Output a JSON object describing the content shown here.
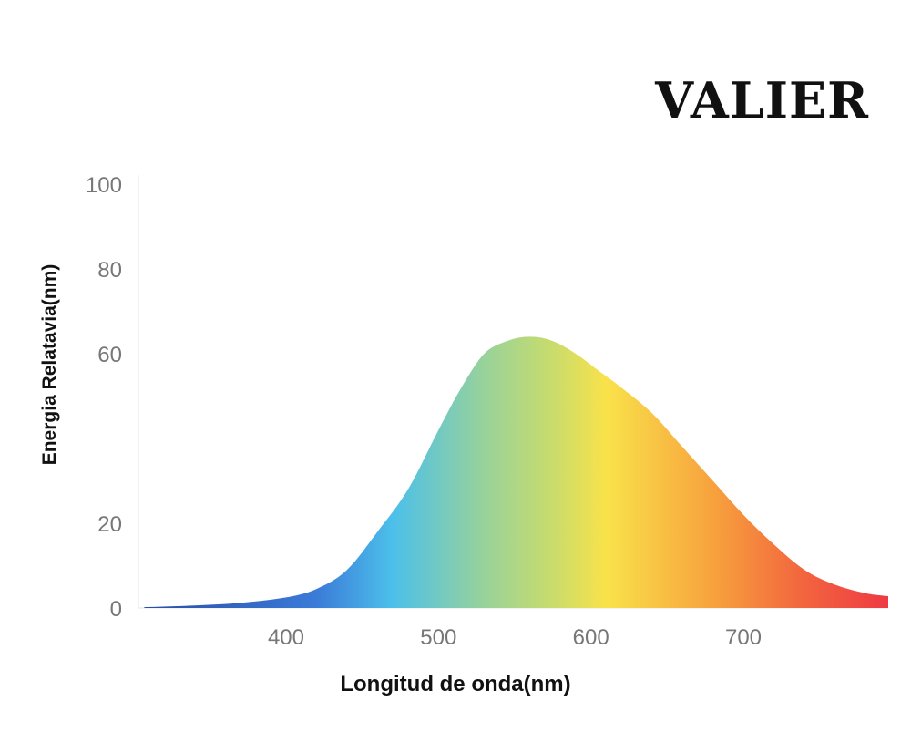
{
  "brand": {
    "name": "VALIER"
  },
  "chart_data": {
    "type": "area",
    "title": "",
    "xlabel": "Longitud de onda(nm)",
    "ylabel": "Energia Relatavia(nm)",
    "xlim": [
      305,
      795
    ],
    "ylim": [
      0,
      100
    ],
    "x_ticks": [
      400,
      500,
      600,
      700
    ],
    "y_ticks": [
      {
        "value": 0,
        "label": "0"
      },
      {
        "value": 20,
        "label": "20"
      },
      {
        "value": 60,
        "label": "60"
      },
      {
        "value": 80,
        "label": "80"
      },
      {
        "value": 100,
        "label": "100"
      }
    ],
    "grid": false,
    "legend": "none",
    "series": [
      {
        "x": [
          307,
          340,
          370,
          400,
          420,
          440,
          460,
          480,
          500,
          515,
          530,
          545,
          560,
          575,
          590,
          605,
          620,
          640,
          660,
          680,
          700,
          720,
          740,
          760,
          780,
          795
        ],
        "values": [
          0.2,
          0.6,
          1.2,
          2.5,
          4.5,
          9,
          18,
          28,
          42,
          52,
          60,
          63,
          64,
          63,
          60,
          56,
          52,
          46,
          38,
          30,
          22,
          15,
          9,
          5.5,
          3.5,
          2.8
        ]
      }
    ],
    "gradient_colors": [
      {
        "wavelength": 310,
        "color": "#2a4faa"
      },
      {
        "wavelength": 420,
        "color": "#3b7bd8"
      },
      {
        "wavelength": 470,
        "color": "#4cc0ea"
      },
      {
        "wavelength": 530,
        "color": "#98d29a"
      },
      {
        "wavelength": 575,
        "color": "#c9dc6c"
      },
      {
        "wavelength": 610,
        "color": "#f9e24a"
      },
      {
        "wavelength": 680,
        "color": "#f7a23d"
      },
      {
        "wavelength": 740,
        "color": "#f2643e"
      },
      {
        "wavelength": 795,
        "color": "#ee3a44"
      }
    ]
  }
}
